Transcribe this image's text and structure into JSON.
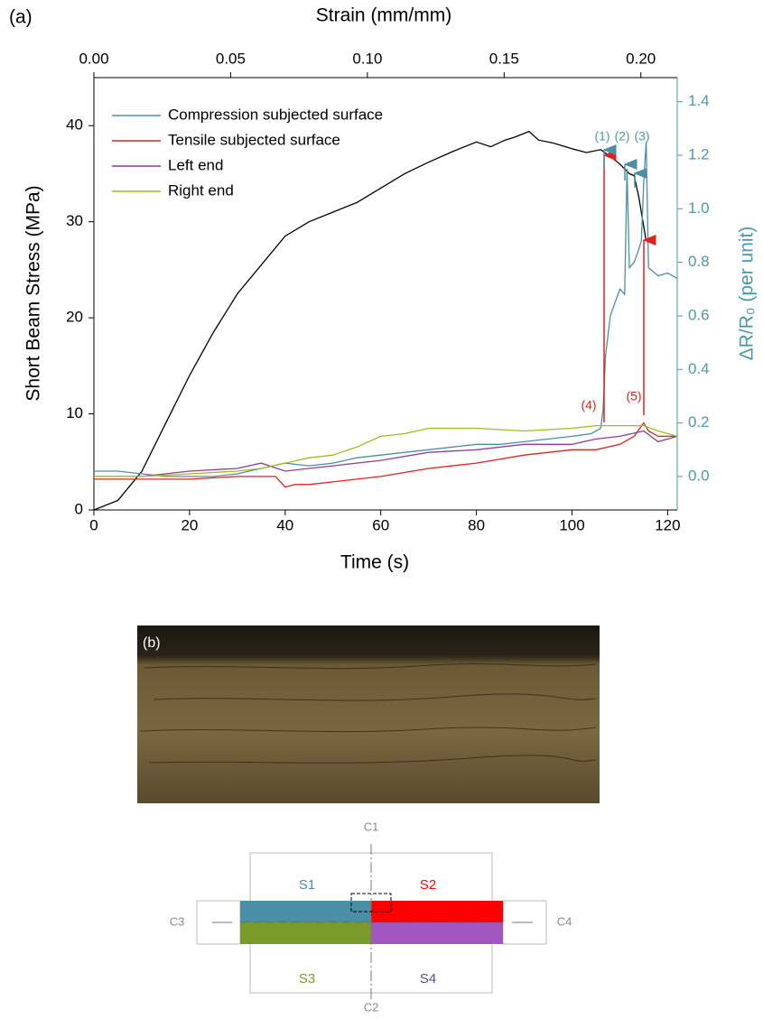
{
  "chart_data": {
    "type": "line",
    "panel_label": "(a)",
    "x_label": "Time (s)",
    "x2_label": "Strain (mm/mm)",
    "y_label": "Short Beam Stress (MPa)",
    "y2_label": "ΔR/R₀ (per unit)",
    "xlim": [
      0,
      122
    ],
    "xticks": [
      0,
      20,
      40,
      60,
      80,
      100,
      120
    ],
    "x2lim": [
      0,
      0.2133
    ],
    "x2ticks": [
      {
        "value": 0,
        "label": "0.00"
      },
      0.05,
      {
        "value": 0.1,
        "label": "0.10"
      },
      0.15,
      {
        "value": 0.2,
        "label": "0.20"
      }
    ],
    "ylim": [
      0,
      45
    ],
    "yticks": [
      0,
      10,
      20,
      30,
      40
    ],
    "y2lim": [
      -0.125,
      1.49
    ],
    "y2ticks": [
      {
        "value": 0,
        "label": "0.0"
      },
      0.2,
      0.4,
      0.6,
      0.8,
      {
        "value": 1,
        "label": "1.0"
      },
      1.2,
      1.4
    ],
    "y2_color": "#4a9aa8",
    "grid": false,
    "legend": "upper-left",
    "annotations": [
      "(1)",
      "(2)",
      "(3)",
      "(4)",
      "(5)"
    ],
    "series": [
      {
        "color": "#000000",
        "axis": "y",
        "x": [
          0,
          5,
          10,
          15,
          20,
          25,
          30,
          35,
          40,
          45,
          50,
          55,
          60,
          65,
          70,
          75,
          80,
          83,
          86,
          88,
          91,
          93,
          96,
          100,
          103,
          106,
          108,
          110,
          112,
          113,
          114,
          115,
          115.5
        ],
        "values": [
          0,
          1,
          4,
          9,
          14,
          18.5,
          22.5,
          25.5,
          28.5,
          30,
          31,
          32,
          33.5,
          35,
          36.2,
          37.3,
          38.3,
          37.8,
          38.5,
          38.8,
          39.4,
          38.5,
          38.2,
          37.6,
          37.2,
          37.5,
          36.8,
          36,
          35,
          34.8,
          32.5,
          29.5,
          28
        ]
      },
      {
        "name": "Compression subjected surface",
        "color": "#4a90a4",
        "axis": "y2",
        "x": [
          0,
          5,
          10,
          15,
          20,
          25,
          30,
          35,
          40,
          45,
          50,
          55,
          60,
          65,
          70,
          75,
          80,
          85,
          90,
          95,
          100,
          104,
          106,
          106.5,
          107,
          108,
          109,
          110,
          111,
          111.5,
          112,
          113,
          114,
          114.5,
          115,
          115.5,
          116,
          118,
          120,
          122
        ],
        "values": [
          0.02,
          0.02,
          0.01,
          0,
          0,
          0,
          0.01,
          0.03,
          0.05,
          0.04,
          0.05,
          0.07,
          0.08,
          0.09,
          0.1,
          0.11,
          0.12,
          0.12,
          0.13,
          0.14,
          0.15,
          0.16,
          0.18,
          0.25,
          0.45,
          0.6,
          0.65,
          0.7,
          0.68,
          1.15,
          0.78,
          0.8,
          0.85,
          0.88,
          1.1,
          1.25,
          0.78,
          0.75,
          0.76,
          0.74
        ]
      },
      {
        "name": "Tensile subjected surface",
        "color": "#e0211c",
        "axis": "y2",
        "x": [
          0,
          10,
          20,
          30,
          38,
          40,
          42,
          45,
          50,
          60,
          70,
          80,
          90,
          100,
          105,
          110,
          113,
          115,
          116,
          118,
          122
        ],
        "values": [
          -0.01,
          -0.01,
          -0.01,
          0,
          0,
          -0.04,
          -0.03,
          -0.03,
          -0.02,
          0,
          0.03,
          0.05,
          0.08,
          0.1,
          0.1,
          0.12,
          0.15,
          0.2,
          0.17,
          0.15,
          0.15
        ]
      },
      {
        "name": "Left end",
        "color": "#8e3e9e",
        "axis": "y2",
        "x": [
          0,
          10,
          20,
          30,
          35,
          40,
          45,
          50,
          60,
          70,
          80,
          90,
          100,
          105,
          110,
          115,
          118,
          122
        ],
        "values": [
          0,
          0,
          0.02,
          0.03,
          0.05,
          0.02,
          0.03,
          0.04,
          0.06,
          0.09,
          0.1,
          0.12,
          0.12,
          0.14,
          0.15,
          0.17,
          0.13,
          0.15
        ]
      },
      {
        "name": "Right end",
        "color": "#a8b820",
        "axis": "y2",
        "x": [
          0,
          10,
          20,
          30,
          35,
          40,
          45,
          50,
          55,
          60,
          65,
          70,
          80,
          90,
          100,
          105,
          110,
          115,
          118,
          122
        ],
        "values": [
          0,
          0,
          0.01,
          0.02,
          0.03,
          0.05,
          0.07,
          0.08,
          0.11,
          0.15,
          0.16,
          0.18,
          0.18,
          0.17,
          0.18,
          0.19,
          0.19,
          0.19,
          0.17,
          0.15
        ]
      }
    ]
  },
  "diagram": {
    "panel_label": "(b)",
    "c1": "C1",
    "c2": "C2",
    "c3": "C3",
    "c4": "C4",
    "s1": "S1",
    "s2": "S2",
    "s3": "S3",
    "s4": "S4"
  }
}
